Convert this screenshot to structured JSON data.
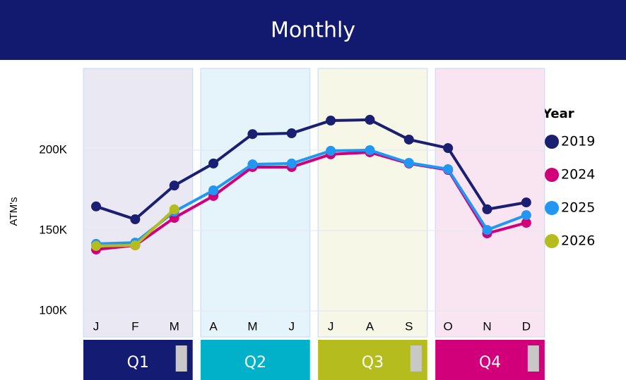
{
  "chart_data": {
    "type": "line",
    "title": "Monthly",
    "y_label": "ATM's",
    "legend_title": "Year",
    "categories": [
      "J",
      "F",
      "M",
      "A",
      "M",
      "J",
      "J",
      "A",
      "S",
      "O",
      "N",
      "D"
    ],
    "series": [
      {
        "name": "2019",
        "color": "#1a1f71",
        "values": [
          165000,
          157000,
          178000,
          191700,
          210000,
          210500,
          218400,
          218900,
          206600,
          201300,
          163200,
          167500
        ]
      },
      {
        "name": "2024",
        "color": "#d1007a",
        "values": [
          138200,
          140800,
          157900,
          171500,
          189500,
          189500,
          197400,
          198700,
          191700,
          187700,
          148200,
          154800
        ]
      },
      {
        "name": "2025",
        "color": "#2196f3",
        "values": [
          141700,
          142500,
          161800,
          175000,
          191200,
          191700,
          199600,
          200000,
          192100,
          188200,
          150400,
          159600
        ]
      },
      {
        "name": "2026",
        "color": "#b5bd1e",
        "values": [
          140400,
          140800,
          163200,
          null,
          null,
          null,
          null,
          null,
          null,
          null,
          null,
          null
        ]
      }
    ],
    "quarters": [
      {
        "label": "Q1",
        "color": "#141b72",
        "background": "#e9e8f3"
      },
      {
        "label": "Q2",
        "color": "#00b1c9",
        "background": "#e4f4fa"
      },
      {
        "label": "Q3",
        "color": "#b5bd1e",
        "background": "#f6f7e7"
      },
      {
        "label": "Q4",
        "color": "#d1007a",
        "background": "#f9e4f2"
      }
    ],
    "ylim": [
      100000,
      250000
    ],
    "yticks": [
      {
        "value": 100000,
        "label": "100K"
      },
      {
        "value": 150000,
        "label": "150K"
      },
      {
        "value": 200000,
        "label": "200K"
      }
    ],
    "grid": true
  }
}
